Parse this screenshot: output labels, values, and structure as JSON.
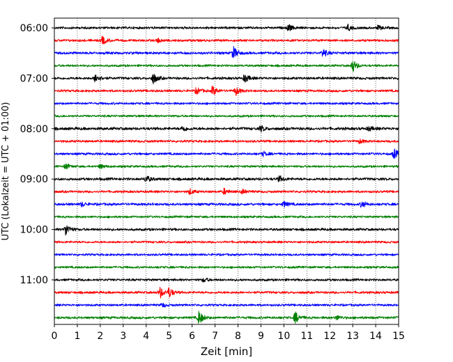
{
  "chart_data": {
    "type": "line",
    "title": "",
    "xlabel": "Zeit  [min]",
    "ylabel": "UTC (Lokalzeit = UTC + 01:00)",
    "xlim": [
      0,
      15
    ],
    "xticks": [
      0,
      1,
      2,
      3,
      4,
      5,
      6,
      7,
      8,
      9,
      10,
      11,
      12,
      13,
      14,
      15
    ],
    "xtick_labels": [
      "0",
      "1",
      "2",
      "3",
      "4",
      "5",
      "6",
      "7",
      "8",
      "9",
      "10",
      "11",
      "12",
      "13",
      "14",
      "15"
    ],
    "yticks": [
      {
        "row": 0,
        "label": "06:00"
      },
      {
        "row": 4,
        "label": "07:00"
      },
      {
        "row": 8,
        "label": "08:00"
      },
      {
        "row": 12,
        "label": "09:00"
      },
      {
        "row": 16,
        "label": "10:00"
      },
      {
        "row": 20,
        "label": "11:00"
      }
    ],
    "grid": "vertical dotted",
    "row_interval_minutes": 15,
    "colors": [
      "#000000",
      "#ff0000",
      "#0000ff",
      "#008000"
    ],
    "rows": [
      {
        "start": "06:00",
        "color": "#000000",
        "noise": 1.5,
        "events": [
          {
            "t": 10.2,
            "a": 5
          },
          {
            "t": 12.8,
            "a": 4
          },
          {
            "t": 14.1,
            "a": 3
          }
        ]
      },
      {
        "start": "06:15",
        "color": "#ff0000",
        "noise": 1.5,
        "events": [
          {
            "t": 2.1,
            "a": 6
          },
          {
            "t": 4.5,
            "a": 3
          }
        ]
      },
      {
        "start": "06:30",
        "color": "#0000ff",
        "noise": 1.6,
        "events": [
          {
            "t": 7.8,
            "a": 9
          },
          {
            "t": 11.7,
            "a": 6
          }
        ]
      },
      {
        "start": "06:45",
        "color": "#008000",
        "noise": 1.4,
        "events": [
          {
            "t": 13.0,
            "a": 9
          }
        ]
      },
      {
        "start": "07:00",
        "color": "#000000",
        "noise": 1.6,
        "events": [
          {
            "t": 1.8,
            "a": 7
          },
          {
            "t": 4.3,
            "a": 8
          },
          {
            "t": 8.3,
            "a": 6
          }
        ]
      },
      {
        "start": "07:15",
        "color": "#ff0000",
        "noise": 1.5,
        "events": [
          {
            "t": 6.2,
            "a": 5
          },
          {
            "t": 6.9,
            "a": 7
          },
          {
            "t": 7.9,
            "a": 6
          }
        ]
      },
      {
        "start": "07:30",
        "color": "#0000ff",
        "noise": 1.4,
        "events": []
      },
      {
        "start": "07:45",
        "color": "#008000",
        "noise": 1.4,
        "events": []
      },
      {
        "start": "08:00",
        "color": "#000000",
        "noise": 1.8,
        "events": [
          {
            "t": 5.6,
            "a": 4
          },
          {
            "t": 9.0,
            "a": 4
          },
          {
            "t": 13.7,
            "a": 3
          }
        ]
      },
      {
        "start": "08:15",
        "color": "#ff0000",
        "noise": 1.5,
        "events": [
          {
            "t": 13.3,
            "a": 3
          }
        ]
      },
      {
        "start": "08:30",
        "color": "#0000ff",
        "noise": 1.5,
        "events": [
          {
            "t": 9.1,
            "a": 3
          },
          {
            "t": 14.8,
            "a": 7
          }
        ]
      },
      {
        "start": "08:45",
        "color": "#008000",
        "noise": 1.4,
        "events": [
          {
            "t": 0.5,
            "a": 4
          },
          {
            "t": 2.0,
            "a": 3
          }
        ]
      },
      {
        "start": "09:00",
        "color": "#000000",
        "noise": 1.7,
        "events": [
          {
            "t": 4.0,
            "a": 5
          },
          {
            "t": 9.8,
            "a": 4
          }
        ]
      },
      {
        "start": "09:15",
        "color": "#ff0000",
        "noise": 1.5,
        "events": [
          {
            "t": 5.9,
            "a": 4
          },
          {
            "t": 7.4,
            "a": 4
          },
          {
            "t": 8.2,
            "a": 3
          }
        ]
      },
      {
        "start": "09:30",
        "color": "#0000ff",
        "noise": 1.6,
        "events": [
          {
            "t": 1.2,
            "a": 3
          },
          {
            "t": 10.0,
            "a": 4
          },
          {
            "t": 13.4,
            "a": 5
          }
        ]
      },
      {
        "start": "09:45",
        "color": "#008000",
        "noise": 1.4,
        "events": []
      },
      {
        "start": "10:00",
        "color": "#000000",
        "noise": 1.6,
        "events": [
          {
            "t": 0.5,
            "a": 9
          }
        ]
      },
      {
        "start": "10:15",
        "color": "#ff0000",
        "noise": 1.4,
        "events": []
      },
      {
        "start": "10:30",
        "color": "#0000ff",
        "noise": 1.4,
        "events": []
      },
      {
        "start": "10:45",
        "color": "#008000",
        "noise": 1.4,
        "events": []
      },
      {
        "start": "11:00",
        "color": "#000000",
        "noise": 1.5,
        "events": [
          {
            "t": 6.5,
            "a": 3
          }
        ]
      },
      {
        "start": "11:15",
        "color": "#ff0000",
        "noise": 1.5,
        "events": [
          {
            "t": 4.6,
            "a": 8
          },
          {
            "t": 5.0,
            "a": 7
          }
        ]
      },
      {
        "start": "11:30",
        "color": "#0000ff",
        "noise": 1.4,
        "events": [
          {
            "t": 4.7,
            "a": 3
          }
        ]
      },
      {
        "start": "11:45",
        "color": "#008000",
        "noise": 1.6,
        "events": [
          {
            "t": 6.3,
            "a": 10
          },
          {
            "t": 10.5,
            "a": 8
          },
          {
            "t": 12.3,
            "a": 3
          }
        ]
      }
    ]
  }
}
